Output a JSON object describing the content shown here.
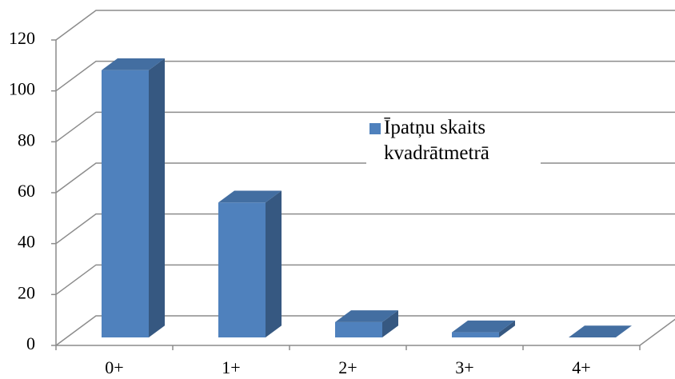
{
  "chart_data": {
    "type": "bar",
    "categories": [
      "0+",
      "1+",
      "2+",
      "3+",
      "4+"
    ],
    "series": [
      {
        "name": "Īpatņu skaits kvadrātmetrā",
        "color": "#4f81bd",
        "values": [
          105,
          53,
          6,
          2,
          0
        ]
      }
    ],
    "ylim": [
      0,
      120
    ],
    "yticks": [
      0,
      20,
      40,
      60,
      80,
      100,
      120
    ],
    "grid": true,
    "legend": "right"
  }
}
